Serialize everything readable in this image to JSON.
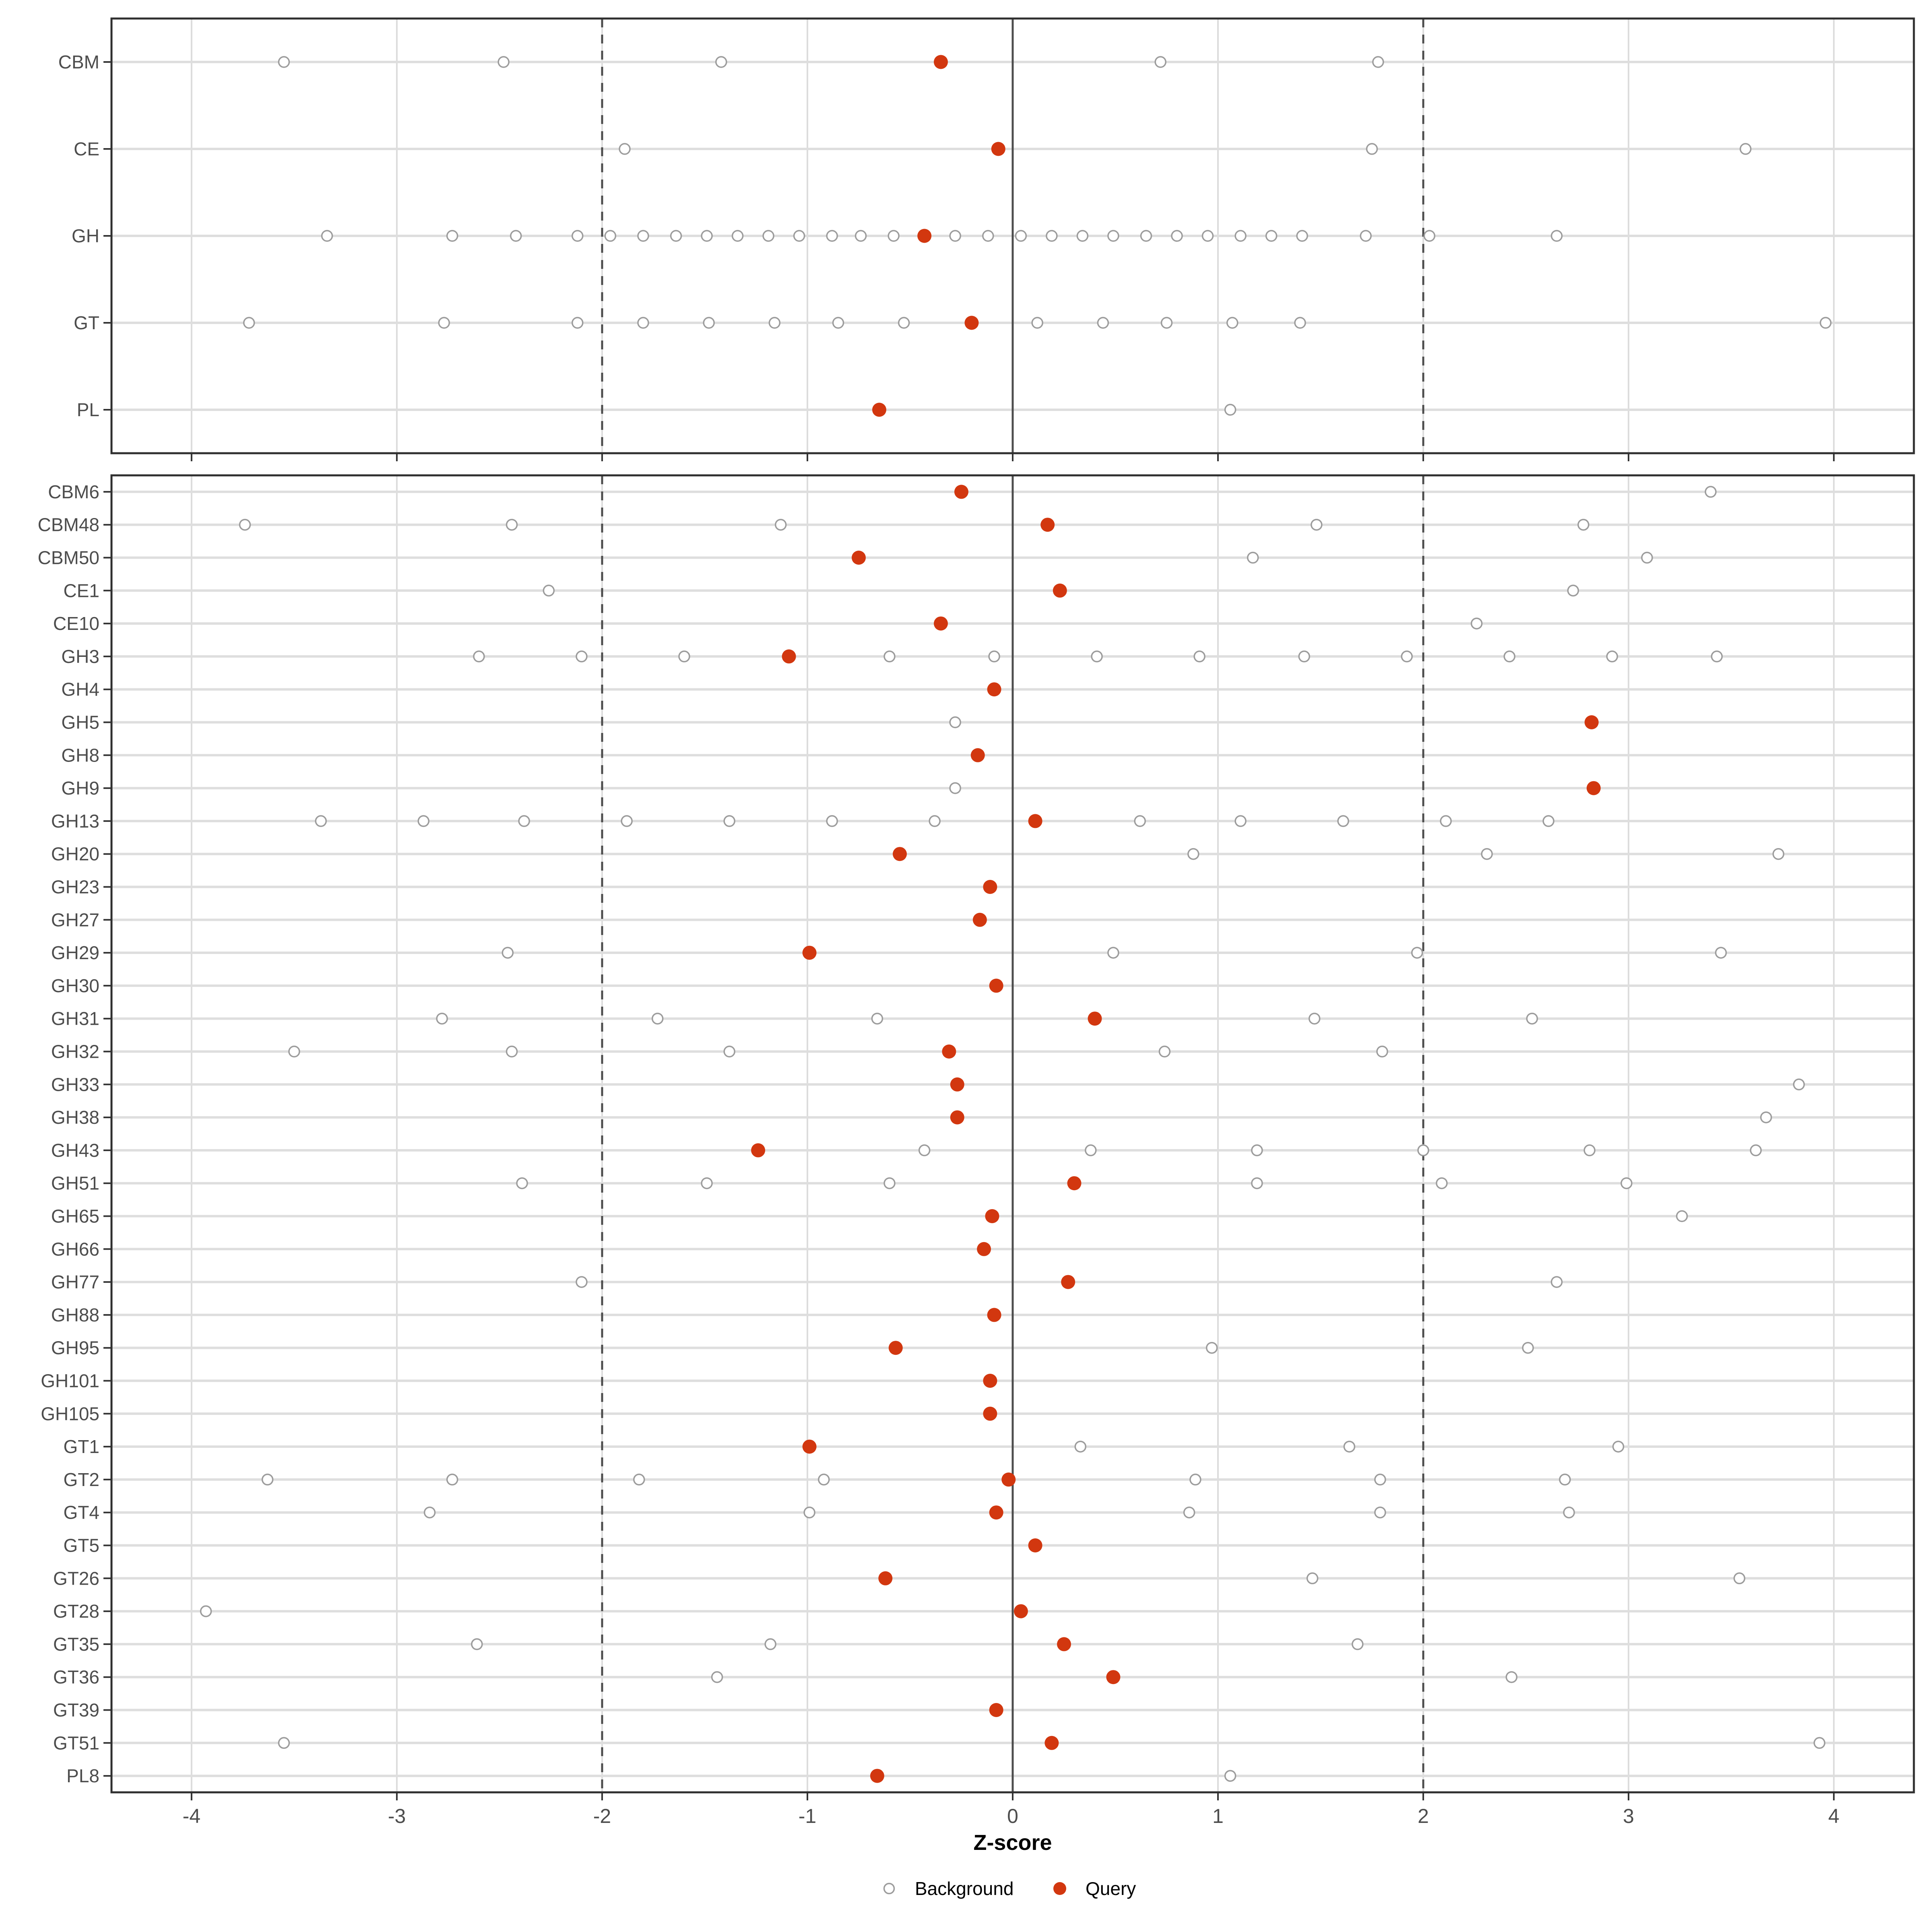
{
  "colors": {
    "query": "#D2370F",
    "background_stroke": "#9C9C9C",
    "background_fill": "#FFFFFF",
    "grid_horizontal": "#DEDEDE",
    "grid_vertical": "#DCDCDC",
    "reference_line": "#4D4D4D",
    "panel_border": "#2F2F2F",
    "axis_text": "#4D4D4D",
    "axis_title": "#000000",
    "tick_mark": "#333333",
    "legend_text": "#000000"
  },
  "chart_data": {
    "type": "scatter",
    "title": "",
    "xlabel": "Z-score",
    "ylabel": "",
    "xlim": [
      -4.39,
      4.39
    ],
    "x_ticks": [
      -4,
      -3,
      -2,
      -1,
      0,
      1,
      2,
      3,
      4
    ],
    "x_tick_labels": [
      "-4",
      "-3",
      "-2",
      "-1",
      "0",
      "1",
      "2",
      "3",
      "4"
    ],
    "grid": true,
    "reference_lines": {
      "solid": [
        0
      ],
      "dashed": [
        -2,
        2
      ]
    },
    "legend": {
      "position": "bottom",
      "items": [
        {
          "label": "Background",
          "type": "background"
        },
        {
          "label": "Query",
          "type": "query"
        }
      ]
    },
    "series_names": [
      "Background",
      "Query"
    ],
    "panels": [
      {
        "name": "top",
        "rows": [
          {
            "category": "CBM",
            "background": [
              -3.55,
              -2.48,
              -1.42,
              0.72,
              1.78
            ],
            "query": -0.35
          },
          {
            "category": "CE",
            "background": [
              -1.89,
              1.75,
              3.57
            ],
            "query": -0.07
          },
          {
            "category": "GH",
            "background": [
              -3.34,
              -2.73,
              -2.42,
              -2.12,
              -1.96,
              -1.8,
              -1.64,
              -1.49,
              -1.34,
              -1.19,
              -1.04,
              -0.88,
              -0.74,
              -0.58,
              -0.28,
              -0.12,
              0.04,
              0.19,
              0.34,
              0.49,
              0.65,
              0.8,
              0.95,
              1.11,
              1.26,
              1.41,
              1.72,
              2.03,
              2.65
            ],
            "query": -0.43
          },
          {
            "category": "GT",
            "background": [
              -3.72,
              -2.77,
              -2.12,
              -1.8,
              -1.48,
              -1.16,
              -0.85,
              -0.53,
              0.12,
              0.44,
              0.75,
              1.07,
              1.4,
              3.96
            ],
            "query": -0.2
          },
          {
            "category": "PL",
            "background": [
              1.06
            ],
            "query": -0.65
          }
        ]
      },
      {
        "name": "bottom",
        "rows": [
          {
            "category": "CBM6",
            "background": [
              3.4
            ],
            "query": -0.25
          },
          {
            "category": "CBM48",
            "background": [
              -3.74,
              -2.44,
              -1.13,
              1.48,
              2.78
            ],
            "query": 0.17
          },
          {
            "category": "CBM50",
            "background": [
              1.17,
              3.09
            ],
            "query": -0.75
          },
          {
            "category": "CE1",
            "background": [
              -2.26,
              2.73
            ],
            "query": 0.23
          },
          {
            "category": "CE10",
            "background": [
              2.26
            ],
            "query": -0.35
          },
          {
            "category": "GH3",
            "background": [
              -2.6,
              -2.1,
              -1.6,
              -0.6,
              -0.09,
              0.41,
              0.91,
              1.42,
              1.92,
              2.42,
              2.92,
              3.43
            ],
            "query": -1.09
          },
          {
            "category": "GH4",
            "background": [],
            "query": -0.09
          },
          {
            "category": "GH5",
            "background": [
              -0.28
            ],
            "query": 2.82
          },
          {
            "category": "GH8",
            "background": [],
            "query": -0.17
          },
          {
            "category": "GH9",
            "background": [
              -0.28
            ],
            "query": 2.83
          },
          {
            "category": "GH13",
            "background": [
              -3.37,
              -2.87,
              -2.38,
              -1.88,
              -1.38,
              -0.88,
              -0.38,
              0.62,
              1.11,
              1.61,
              2.11,
              2.61
            ],
            "query": 0.11
          },
          {
            "category": "GH20",
            "background": [
              0.88,
              2.31,
              3.73
            ],
            "query": -0.55
          },
          {
            "category": "GH23",
            "background": [],
            "query": -0.11
          },
          {
            "category": "GH27",
            "background": [],
            "query": -0.16
          },
          {
            "category": "GH29",
            "background": [
              -2.46,
              0.49,
              1.97,
              3.45
            ],
            "query": -0.99
          },
          {
            "category": "GH30",
            "background": [],
            "query": -0.08
          },
          {
            "category": "GH31",
            "background": [
              -2.78,
              -1.73,
              -0.66,
              1.47,
              2.53
            ],
            "query": 0.4
          },
          {
            "category": "GH32",
            "background": [
              -3.5,
              -2.44,
              -1.38,
              0.74,
              1.8
            ],
            "query": -0.31
          },
          {
            "category": "GH33",
            "background": [
              3.83
            ],
            "query": -0.27
          },
          {
            "category": "GH38",
            "background": [
              3.67
            ],
            "query": -0.27
          },
          {
            "category": "GH43",
            "background": [
              -0.43,
              0.38,
              1.19,
              2.0,
              2.81,
              3.62
            ],
            "query": -1.24
          },
          {
            "category": "GH51",
            "background": [
              -2.39,
              -1.49,
              -0.6,
              1.19,
              2.09,
              2.99
            ],
            "query": 0.3
          },
          {
            "category": "GH65",
            "background": [
              3.26
            ],
            "query": -0.1
          },
          {
            "category": "GH66",
            "background": [],
            "query": -0.14
          },
          {
            "category": "GH77",
            "background": [
              -2.1,
              2.65
            ],
            "query": 0.27
          },
          {
            "category": "GH88",
            "background": [],
            "query": -0.09
          },
          {
            "category": "GH95",
            "background": [
              0.97,
              2.51
            ],
            "query": -0.57
          },
          {
            "category": "GH101",
            "background": [],
            "query": -0.11
          },
          {
            "category": "GH105",
            "background": [],
            "query": -0.11
          },
          {
            "category": "GT1",
            "background": [
              0.33,
              1.64,
              2.95
            ],
            "query": -0.99
          },
          {
            "category": "GT2",
            "background": [
              -3.63,
              -2.73,
              -1.82,
              -0.92,
              0.89,
              1.79,
              2.69
            ],
            "query": -0.02
          },
          {
            "category": "GT4",
            "background": [
              -2.84,
              -0.99,
              0.86,
              1.79,
              2.71
            ],
            "query": -0.08
          },
          {
            "category": "GT5",
            "background": [],
            "query": 0.11
          },
          {
            "category": "GT26",
            "background": [
              1.46,
              3.54
            ],
            "query": -0.62
          },
          {
            "category": "GT28",
            "background": [
              -3.93
            ],
            "query": 0.04
          },
          {
            "category": "GT35",
            "background": [
              -2.61,
              -1.18,
              1.68
            ],
            "query": 0.25
          },
          {
            "category": "GT36",
            "background": [
              -1.44,
              2.43
            ],
            "query": 0.49
          },
          {
            "category": "GT39",
            "background": [],
            "query": -0.08
          },
          {
            "category": "GT51",
            "background": [
              -3.55,
              3.93
            ],
            "query": 0.19
          },
          {
            "category": "PL8",
            "background": [
              1.06
            ],
            "query": -0.66
          }
        ]
      }
    ]
  }
}
